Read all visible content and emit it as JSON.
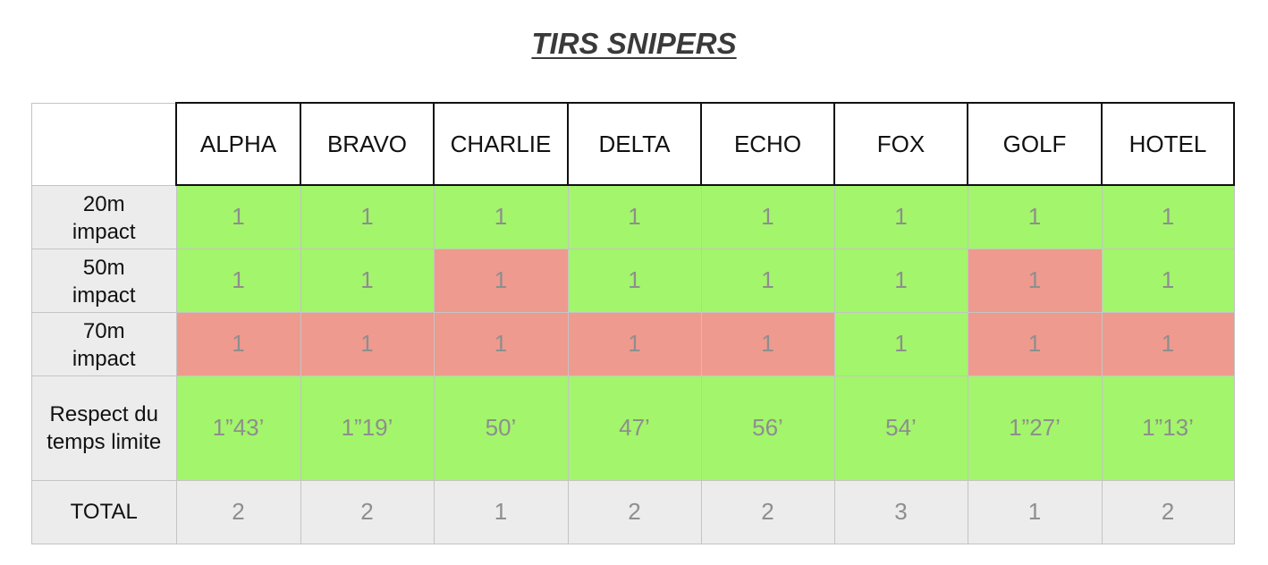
{
  "title": "TIRS SNIPERS",
  "teams": [
    "ALPHA",
    "BRAVO",
    "CHARLIE",
    "DELTA",
    "ECHO",
    "FOX",
    "GOLF",
    "HOTEL"
  ],
  "rows": [
    {
      "label": "20m impact",
      "cells": [
        "1",
        "1",
        "1",
        "1",
        "1",
        "1",
        "1",
        "1"
      ],
      "status": [
        "green",
        "green",
        "green",
        "green",
        "green",
        "green",
        "green",
        "green"
      ]
    },
    {
      "label": "50m impact",
      "cells": [
        "1",
        "1",
        "1",
        "1",
        "1",
        "1",
        "1",
        "1"
      ],
      "status": [
        "green",
        "green",
        "red",
        "green",
        "green",
        "green",
        "red",
        "green"
      ]
    },
    {
      "label": "70m impact",
      "cells": [
        "1",
        "1",
        "1",
        "1",
        "1",
        "1",
        "1",
        "1"
      ],
      "status": [
        "red",
        "red",
        "red",
        "red",
        "red",
        "green",
        "red",
        "red"
      ]
    },
    {
      "label": "Respect du temps limite",
      "cells": [
        "1”43’",
        "1”19’",
        "50’",
        "47’",
        "56’",
        "54’",
        "1”27’",
        "1”13’"
      ],
      "status": [
        "green",
        "green",
        "green",
        "green",
        "green",
        "green",
        "green",
        "green"
      ]
    }
  ],
  "total": {
    "label": "TOTAL",
    "cells": [
      "2",
      "2",
      "1",
      "2",
      "2",
      "3",
      "1",
      "2"
    ]
  },
  "colors": {
    "green": "#a3f56b",
    "red": "#ef9a8e",
    "header_gray": "#ececec"
  }
}
